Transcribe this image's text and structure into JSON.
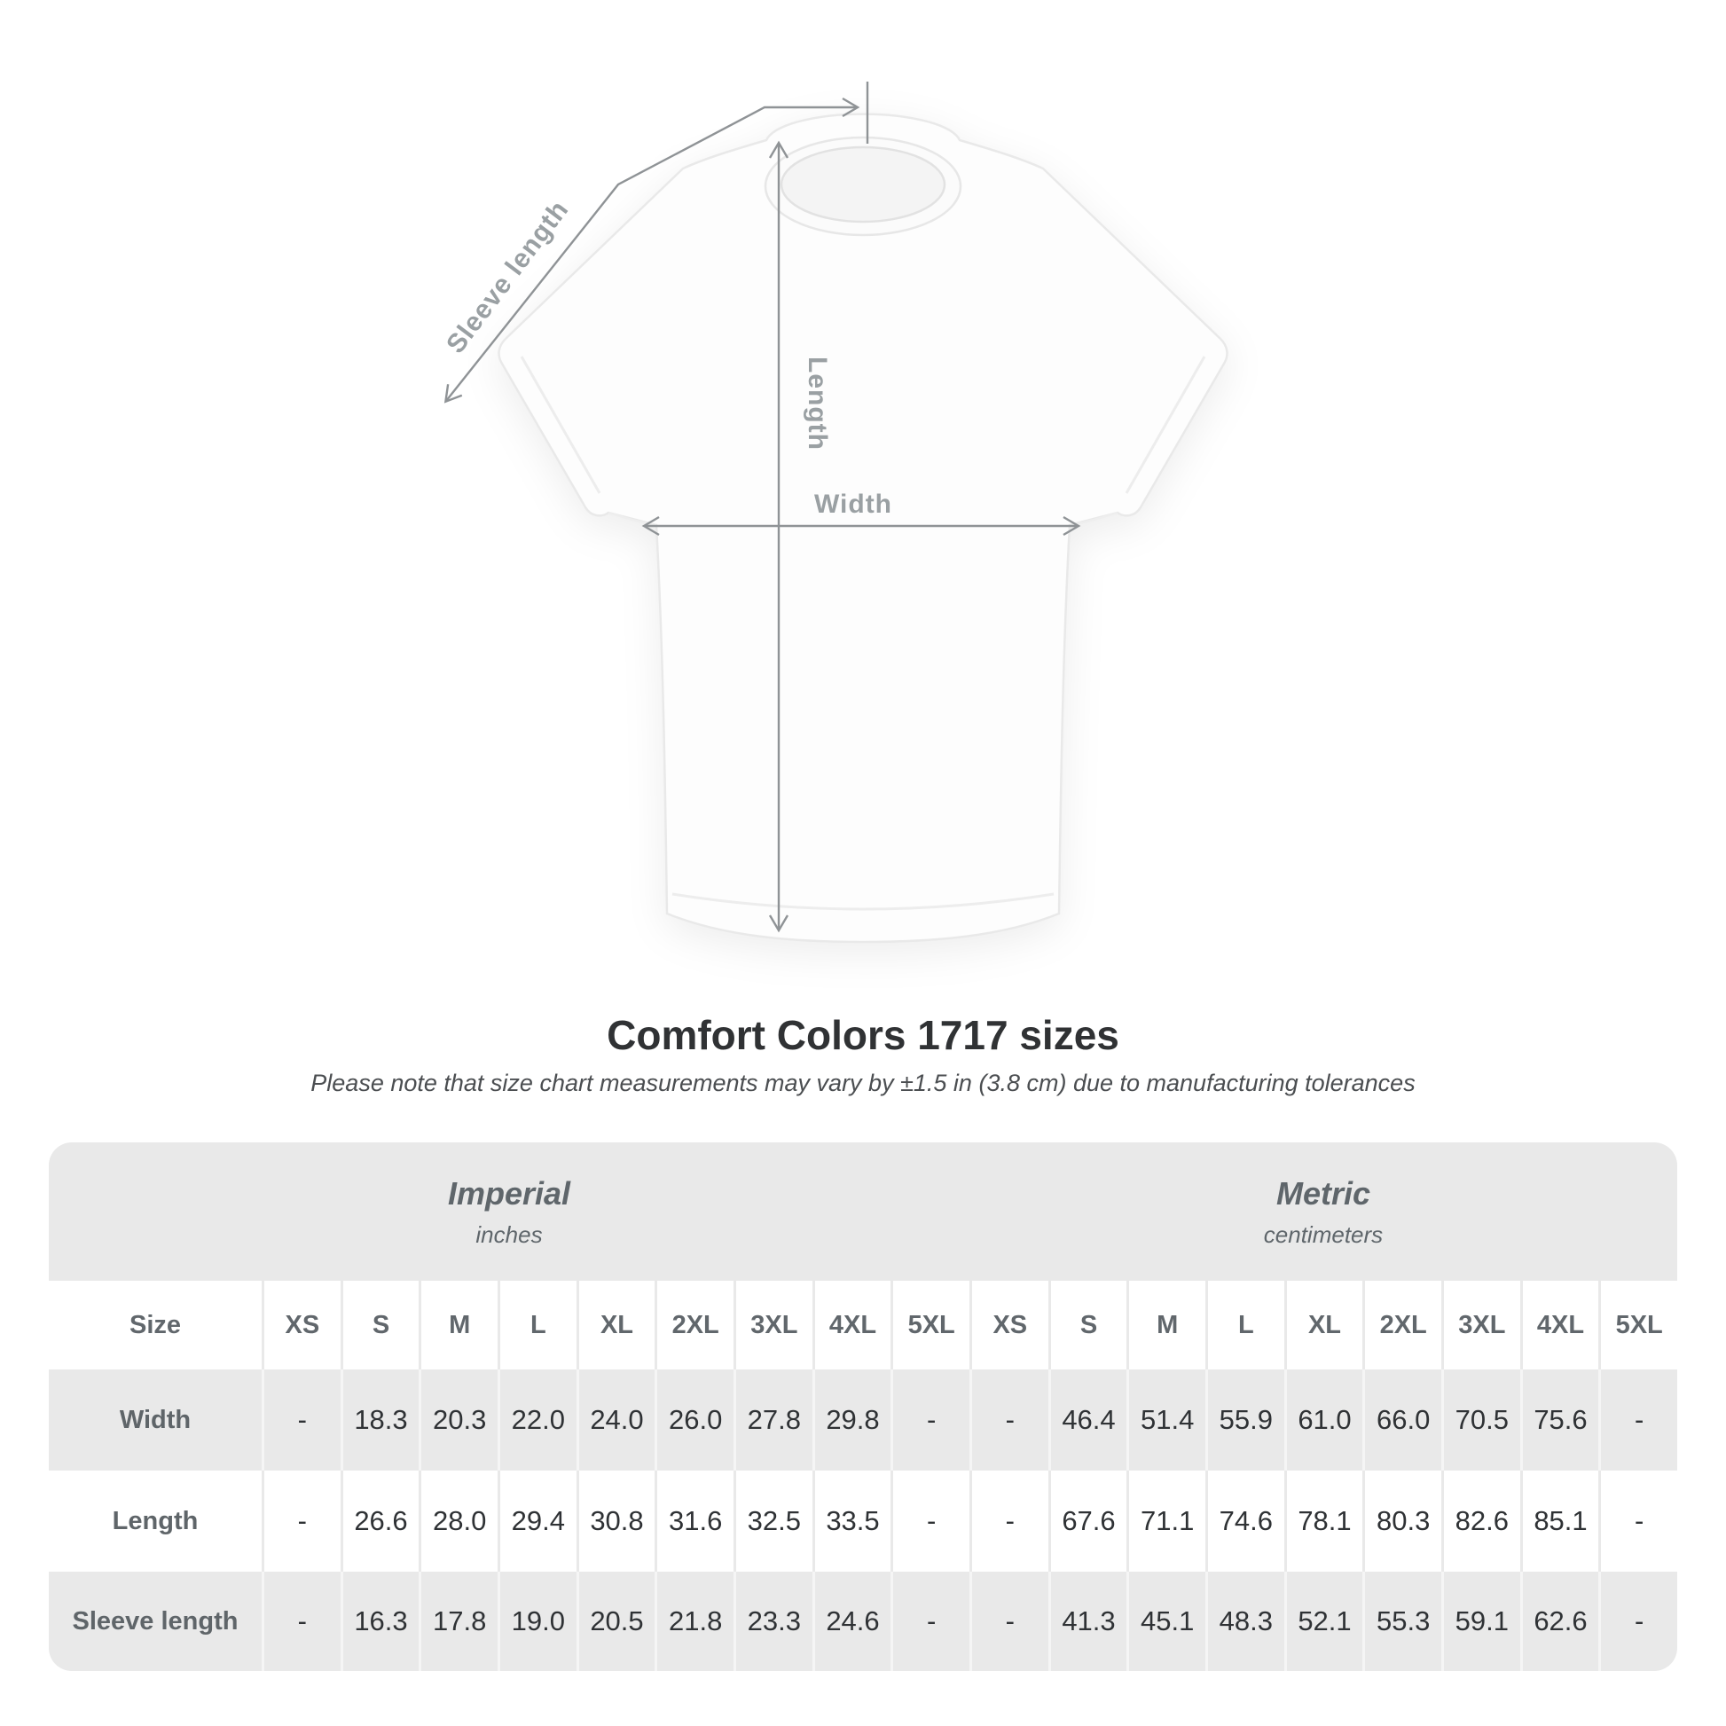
{
  "diagram": {
    "labels": {
      "sleeve": "Sleeve length",
      "length": "Length",
      "width": "Width"
    }
  },
  "title": "Comfort Colors 1717 sizes",
  "subtitle": "Please note that size chart measurements may vary by ±1.5 in (3.8 cm) due to manufacturing tolerances",
  "table": {
    "unit_groups": [
      {
        "name": "Imperial",
        "unit": "inches"
      },
      {
        "name": "Metric",
        "unit": "centimeters"
      }
    ],
    "size_header": "Size",
    "columns": [
      "XS",
      "S",
      "M",
      "L",
      "XL",
      "2XL",
      "3XL",
      "4XL",
      "5XL",
      "XS",
      "S",
      "M",
      "L",
      "XL",
      "2XL",
      "3XL",
      "4XL",
      "5XL"
    ],
    "rows": [
      {
        "label": "Width",
        "values": [
          "-",
          "18.3",
          "20.3",
          "22.0",
          "24.0",
          "26.0",
          "27.8",
          "29.8",
          "-",
          "-",
          "46.4",
          "51.4",
          "55.9",
          "61.0",
          "66.0",
          "70.5",
          "75.6",
          "-"
        ]
      },
      {
        "label": "Length",
        "values": [
          "-",
          "26.6",
          "28.0",
          "29.4",
          "30.8",
          "31.6",
          "32.5",
          "33.5",
          "-",
          "-",
          "67.6",
          "71.1",
          "74.6",
          "78.1",
          "80.3",
          "82.6",
          "85.1",
          "-"
        ]
      },
      {
        "label": "Sleeve length",
        "values": [
          "-",
          "16.3",
          "17.8",
          "19.0",
          "20.5",
          "21.8",
          "23.3",
          "24.6",
          "-",
          "-",
          "41.3",
          "45.1",
          "48.3",
          "52.1",
          "55.3",
          "59.1",
          "62.6",
          "-"
        ]
      }
    ]
  },
  "colors": {
    "table_bg": "#e9e9e9",
    "row_alt_bg": "#ffffff",
    "header_text": "#61676c",
    "value_text": "#2f3235",
    "title_text": "#303234",
    "subtitle_text": "#4b4e51",
    "diagram_line": "#8f9396",
    "diagram_label": "#9aa0a3"
  }
}
